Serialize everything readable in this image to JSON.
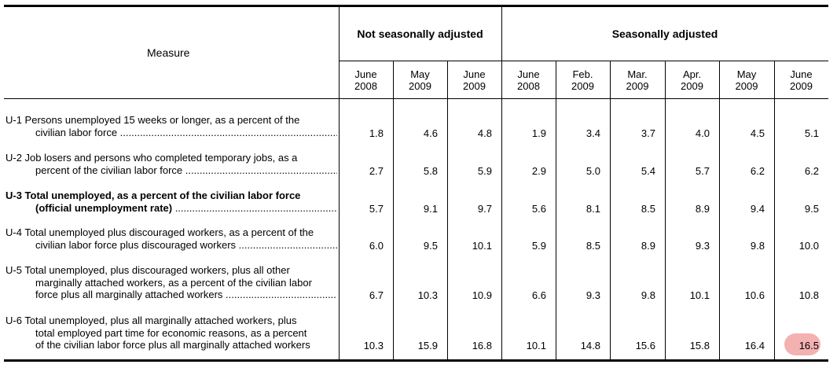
{
  "header": {
    "measure_label": "Measure",
    "group_nsa": "Not seasonally adjusted",
    "group_sa": "Seasonally adjusted"
  },
  "columns": [
    {
      "month": "June",
      "year": "2008"
    },
    {
      "month": "May",
      "year": "2009"
    },
    {
      "month": "June",
      "year": "2009"
    },
    {
      "month": "June",
      "year": "2008"
    },
    {
      "month": "Feb.",
      "year": "2009"
    },
    {
      "month": "Mar.",
      "year": "2009"
    },
    {
      "month": "Apr.",
      "year": "2009"
    },
    {
      "month": "May",
      "year": "2009"
    },
    {
      "month": "June",
      "year": "2009"
    }
  ],
  "rows": [
    {
      "lines": [
        "U-1 Persons unemployed 15 weeks or longer, as a percent of the",
        "civilian labor force"
      ],
      "values": [
        "1.8",
        "4.6",
        "4.8",
        "1.9",
        "3.4",
        "3.7",
        "4.0",
        "4.5",
        "5.1"
      ]
    },
    {
      "lines": [
        "U-2 Job losers and persons who completed temporary jobs, as a",
        "percent of the civilian labor force"
      ],
      "values": [
        "2.7",
        "5.8",
        "5.9",
        "2.9",
        "5.0",
        "5.4",
        "5.7",
        "6.2",
        "6.2"
      ]
    },
    {
      "lines": [
        "U-3 Total unemployed, as a percent of the civilian labor force",
        "(official unemployment rate)"
      ],
      "values": [
        "5.7",
        "9.1",
        "9.7",
        "5.6",
        "8.1",
        "8.5",
        "8.9",
        "9.4",
        "9.5"
      ]
    },
    {
      "lines": [
        "U-4 Total unemployed plus discouraged workers, as a percent of the",
        "civilian labor force plus discouraged workers"
      ],
      "values": [
        "6.0",
        "9.5",
        "10.1",
        "5.9",
        "8.5",
        "8.9",
        "9.3",
        "9.8",
        "10.0"
      ]
    },
    {
      "lines": [
        "U-5 Total unemployed, plus discouraged workers, plus all other",
        "marginally attached workers, as a percent of the civilian labor",
        "force plus all marginally attached workers"
      ],
      "values": [
        "6.7",
        "10.3",
        "10.9",
        "6.6",
        "9.3",
        "9.8",
        "10.1",
        "10.6",
        "10.8"
      ]
    },
    {
      "lines": [
        "U-6 Total unemployed, plus all marginally attached workers, plus",
        "total employed part time for economic reasons, as a percent",
        "of the civilian labor force plus all marginally attached workers"
      ],
      "values": [
        "10.3",
        "15.9",
        "16.8",
        "10.1",
        "14.8",
        "15.6",
        "15.8",
        "16.4",
        "16.5"
      ]
    }
  ],
  "highlight_color": "#f2a3a3"
}
